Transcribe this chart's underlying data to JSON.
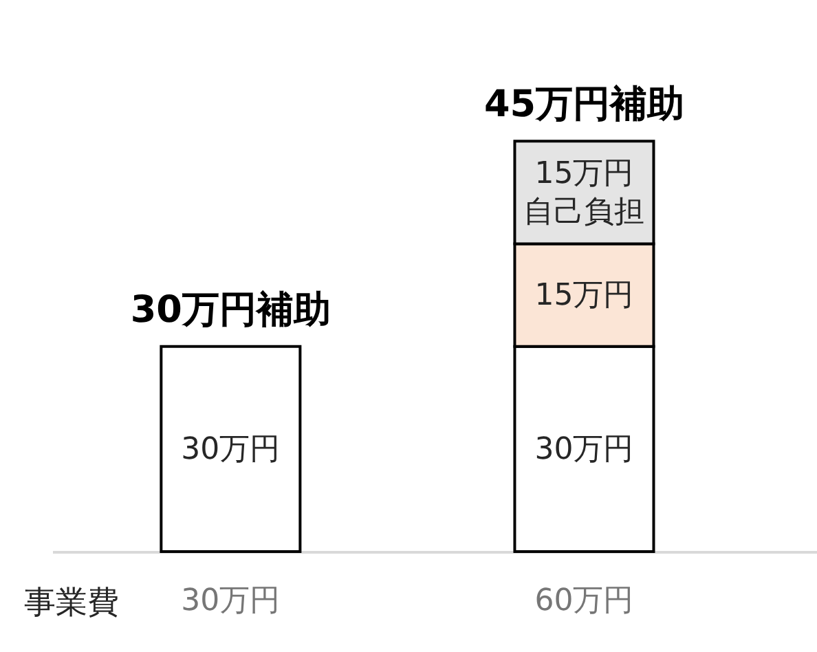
{
  "chart_data": {
    "type": "bar",
    "stacked": true,
    "tick_labels": "x",
    "xlabel": "事業費",
    "categories": [
      "30万円",
      "60万円"
    ],
    "series": [
      {
        "color": "#ffffff",
        "values": [
          30,
          30
        ],
        "value_labels": [
          "30万円",
          "30万円"
        ]
      },
      {
        "color": "#fbe5d6",
        "values": [
          null,
          15
        ],
        "value_labels": [
          null,
          "15万円"
        ]
      },
      {
        "color": "#e4e4e4",
        "values": [
          null,
          15
        ],
        "value_labels": [
          null,
          "15万円自己負担"
        ]
      }
    ],
    "annotations": [
      {
        "text": "30万円補助",
        "x": "30万円",
        "y": 30
      },
      {
        "text": "45万円補助",
        "x": "60万円",
        "y": 60
      }
    ]
  }
}
